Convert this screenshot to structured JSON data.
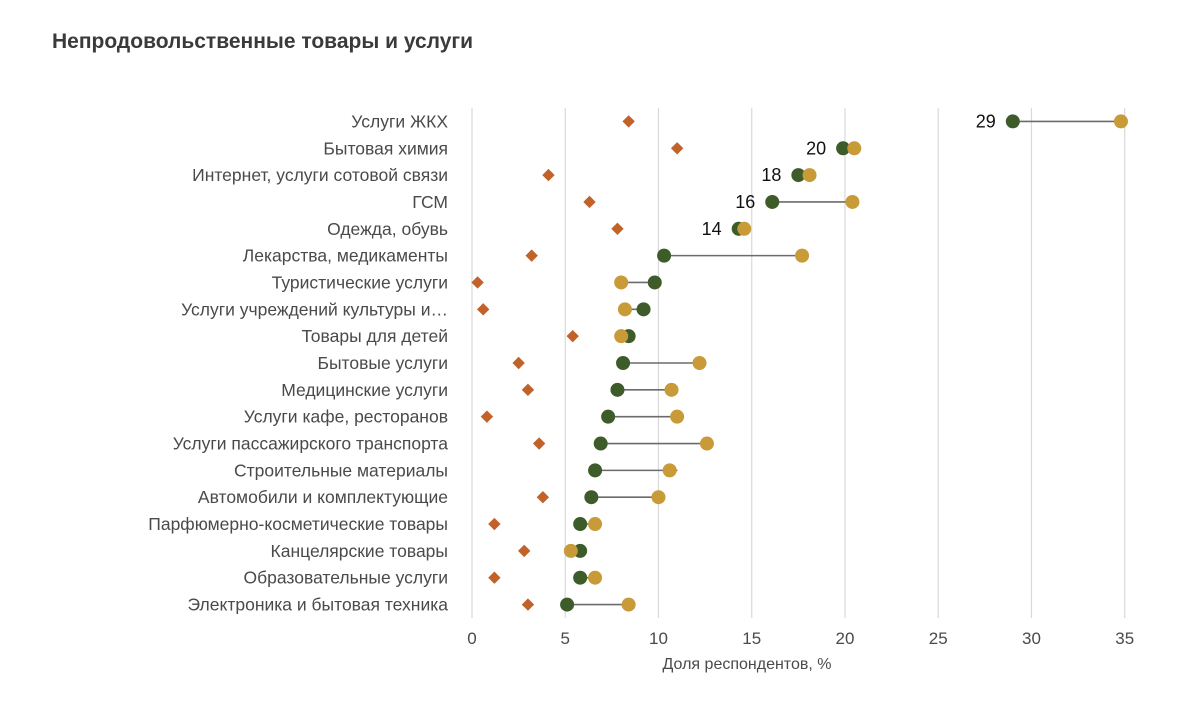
{
  "chart_data": {
    "type": "dot",
    "title": "Непродовольственные товары и услуги",
    "xlabel": "Доля респондентов, %",
    "ylabel": "",
    "xlim": [
      0,
      37
    ],
    "xticks": [
      0,
      5,
      10,
      15,
      20,
      25,
      30,
      35
    ],
    "grid": true,
    "legend": "none",
    "categories": [
      "Услуги ЖКХ",
      "Бытовая химия",
      "Интернет, услуги сотовой связи",
      "ГСМ",
      "Одежда, обувь",
      "Лекарства, медикаменты",
      "Туристические услуги",
      "Услуги учреждений культуры и…",
      "Товары для детей",
      "Бытовые услуги",
      "Медицинские услуги",
      "Услуги кафе, ресторанов",
      "Услуги пассажирского транспорта",
      "Строительные материалы",
      "Автомобили и комплектующие",
      "Парфюмерно-косметические товары",
      "Канцелярские товары",
      "Образовательные услуги",
      "Электроника и бытовая техника"
    ],
    "series": [
      {
        "color": "#3d5c2a",
        "marker": "circle",
        "values": [
          29.0,
          19.9,
          17.5,
          16.1,
          14.3,
          10.3,
          9.8,
          9.2,
          8.4,
          8.1,
          7.8,
          7.3,
          6.9,
          6.6,
          6.4,
          5.8,
          5.8,
          5.8,
          5.1
        ]
      },
      {
        "color": "#c89a38",
        "marker": "circle",
        "values": [
          34.8,
          20.5,
          18.1,
          20.4,
          14.6,
          17.7,
          8.0,
          8.2,
          8.0,
          12.2,
          10.7,
          11.0,
          12.6,
          10.6,
          10.0,
          6.6,
          5.3,
          6.6,
          8.4
        ]
      },
      {
        "color": "#c0622a",
        "marker": "diamond",
        "values": [
          8.4,
          11.0,
          4.1,
          6.3,
          7.8,
          3.2,
          0.3,
          0.6,
          5.4,
          2.5,
          3.0,
          0.8,
          3.6,
          10.7,
          3.8,
          1.2,
          2.8,
          1.2,
          3.0
        ]
      }
    ],
    "data_labels": [
      {
        "row": 0,
        "text": "29"
      },
      {
        "row": 1,
        "text": "20"
      },
      {
        "row": 2,
        "text": "18"
      },
      {
        "row": 3,
        "text": "16"
      },
      {
        "row": 4,
        "text": "14"
      }
    ],
    "connector_color": "#6b6b6b"
  }
}
